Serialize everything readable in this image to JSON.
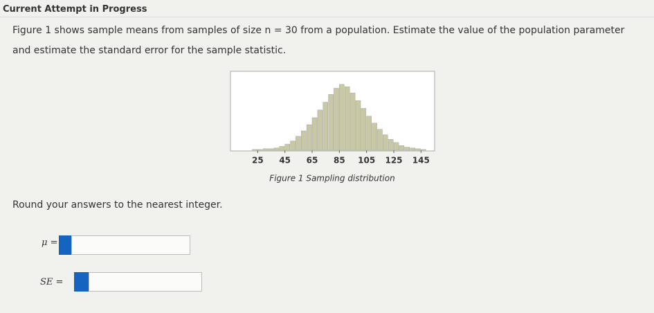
{
  "header": {
    "title": "Current Attempt in Progress"
  },
  "question": {
    "text": "Figure 1 shows sample means from samples of size n = 30 from a population. Estimate the value of the population parameter and estimate the standard error for the sample statistic."
  },
  "chart_data": {
    "type": "histogram",
    "caption": "Figure 1 Sampling distribution",
    "bins": [
      21,
      25,
      29,
      33,
      37,
      41,
      45,
      49,
      53,
      57,
      61,
      65,
      69,
      73,
      77,
      81,
      85,
      89,
      93,
      97,
      101,
      105,
      109,
      113,
      117,
      121,
      125,
      129,
      133,
      137,
      141,
      145,
      149
    ],
    "counts": [
      1,
      1,
      2,
      2,
      3,
      5,
      8,
      12,
      18,
      25,
      33,
      42,
      52,
      62,
      72,
      80,
      85,
      82,
      74,
      64,
      54,
      44,
      35,
      27,
      20,
      14,
      10,
      6,
      4,
      3,
      2,
      1
    ],
    "color": "#c8c9a4",
    "xlim": [
      5,
      155
    ],
    "ylim": [
      0,
      100
    ],
    "xticks": [
      25,
      45,
      65,
      85,
      105,
      125,
      145
    ]
  },
  "instructions": "Round your answers to the nearest integer.",
  "answers": [
    {
      "label": "μ ="
    },
    {
      "label": "SE ="
    }
  ]
}
